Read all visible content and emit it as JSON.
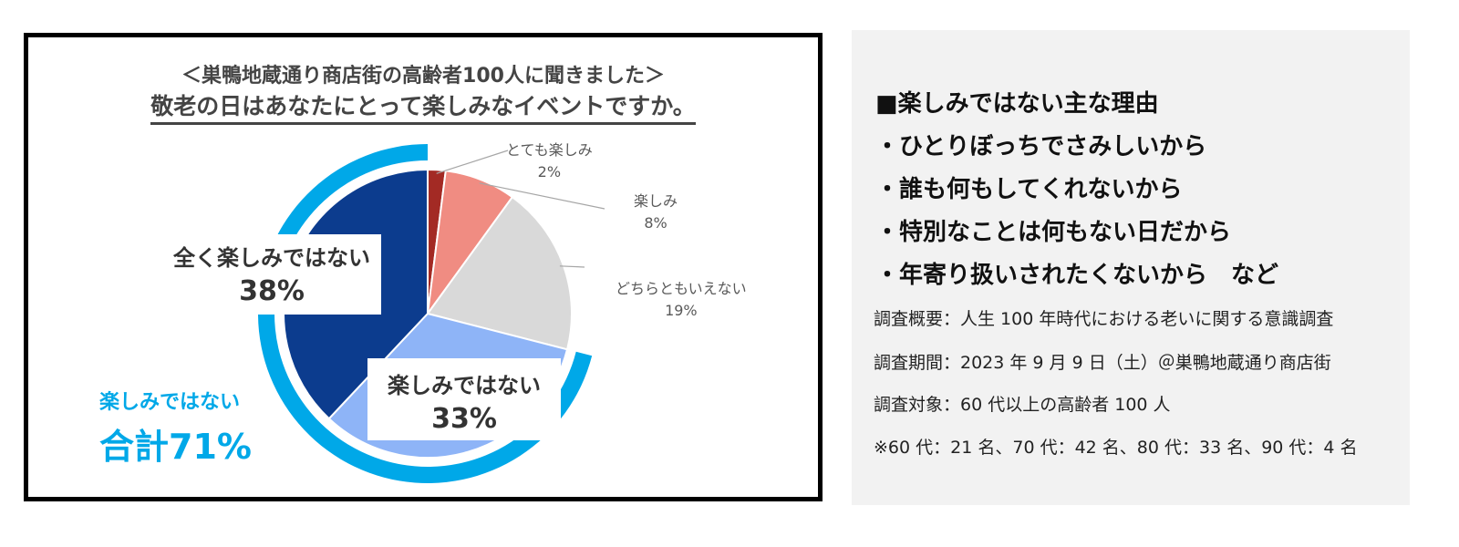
{
  "chart_data": {
    "type": "pie",
    "title": "＜巣鴨地蔵通り商店街の高齢者100人に聞きました＞",
    "subtitle": "敬老の日はあなたにとって楽しみなイベントですか。",
    "categories": [
      "とても楽しみ",
      "楽しみ",
      "どちらともいえない",
      "楽しみではない",
      "全く楽しみではない"
    ],
    "values": [
      2,
      8,
      19,
      33,
      38
    ],
    "percent_labels": [
      "2%",
      "8%",
      "19%",
      "33%",
      "38%"
    ],
    "colors": [
      "#a32a24",
      "#f08c82",
      "#d9d9d9",
      "#8eb4f7",
      "#0c3c8e"
    ],
    "group": {
      "label": "楽しみではない",
      "total_label": "合計71%",
      "value": 71,
      "members": [
        "楽しみではない",
        "全く楽しみではない"
      ],
      "color": "#00a8e8"
    }
  },
  "info": {
    "heading": "■楽しみではない主な理由",
    "reasons": [
      "・ひとりぼっちでさみしいから",
      "・誰も何もしてくれないから",
      "・特別なことは何もない日だから",
      "・年寄り扱いされたくないから　など"
    ],
    "notes": [
      "調査概要：人生 100 年時代における老いに関する意識調査",
      "調査期間：2023 年 9 月 9 日（土）＠巣鴨地蔵通り商店街",
      "調査対象：60 代以上の高齢者 100 人",
      "※60 代：21 名、70 代：42 名、80 代：33 名、90 代：4 名"
    ]
  }
}
